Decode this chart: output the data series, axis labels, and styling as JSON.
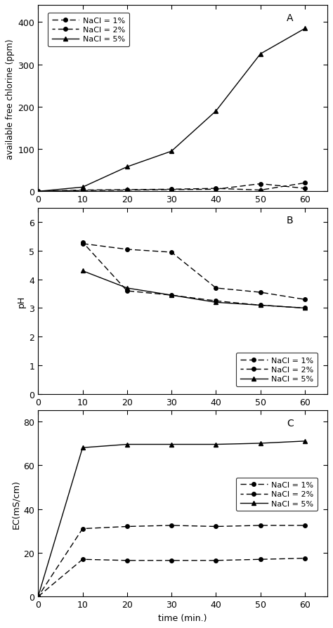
{
  "time": [
    0,
    10,
    20,
    30,
    40,
    50,
    60
  ],
  "panel_A": {
    "title": "A",
    "ylabel": "available free chlorine (ppm)",
    "ylim": [
      0,
      440
    ],
    "yticks": [
      0,
      100,
      200,
      300,
      400
    ],
    "nacl1": [
      0,
      2,
      3,
      4,
      5,
      18,
      7
    ],
    "nacl2": [
      0,
      3,
      4,
      5,
      7,
      3,
      20
    ],
    "nacl5": [
      0,
      10,
      58,
      95,
      190,
      325,
      385
    ]
  },
  "panel_B": {
    "title": "B",
    "ylabel": "pH",
    "ylim": [
      0,
      6.5
    ],
    "yticks": [
      0,
      1,
      2,
      3,
      4,
      5,
      6
    ],
    "nacl1_time": [
      10,
      20,
      30,
      40,
      50,
      60
    ],
    "nacl1": [
      5.25,
      5.05,
      4.95,
      3.7,
      3.55,
      3.3
    ],
    "nacl2_time": [
      10,
      20,
      30,
      40,
      50,
      60
    ],
    "nacl2": [
      5.3,
      3.6,
      3.45,
      3.25,
      3.1,
      3.0
    ],
    "nacl5_time": [
      10,
      20,
      30,
      40,
      50,
      60
    ],
    "nacl5": [
      4.3,
      3.7,
      3.45,
      3.2,
      3.1,
      3.0
    ]
  },
  "panel_C": {
    "title": "C",
    "ylabel": "EC(mS/cm)",
    "xlabel": "time (min.)",
    "ylim": [
      0,
      85
    ],
    "yticks": [
      0,
      20,
      40,
      60,
      80
    ],
    "nacl1": [
      0,
      17,
      16.5,
      16.5,
      16.5,
      17,
      17.5
    ],
    "nacl2": [
      0,
      31,
      32,
      32.5,
      32,
      32.5,
      32.5
    ],
    "nacl5": [
      0,
      68,
      69.5,
      69.5,
      69.5,
      70,
      71
    ]
  },
  "legend_labels": [
    "NaCl = 1%",
    "NaCl = 2%",
    "NaCl = 5%"
  ],
  "xticks": [
    0,
    10,
    20,
    30,
    40,
    50,
    60
  ],
  "xlim": [
    0,
    65
  ]
}
